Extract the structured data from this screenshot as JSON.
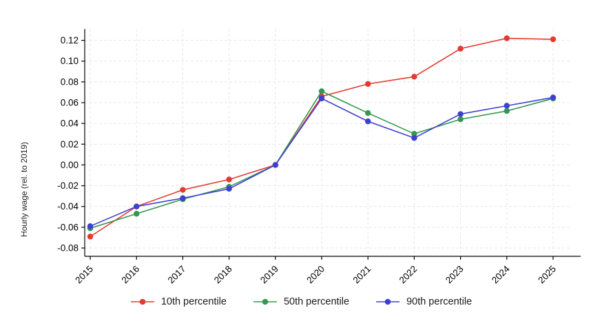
{
  "chart_data": {
    "type": "line",
    "title": "",
    "xlabel": "",
    "ylabel": "Hourly wage (rel. to 2019)",
    "x": [
      2015,
      2016,
      2017,
      2018,
      2019,
      2020,
      2021,
      2022,
      2023,
      2024,
      2025
    ],
    "series": [
      {
        "name": "10th percentile",
        "color": "#e5392f",
        "values": [
          -0.069,
          -0.04,
          -0.024,
          -0.014,
          0.0,
          0.066,
          0.078,
          0.085,
          0.112,
          0.122,
          0.121
        ]
      },
      {
        "name": "50th percentile",
        "color": "#34984e",
        "values": [
          -0.061,
          -0.047,
          -0.033,
          -0.021,
          0.0,
          0.071,
          0.05,
          0.03,
          0.044,
          0.052,
          0.064
        ]
      },
      {
        "name": "90th percentile",
        "color": "#3f3fd3",
        "values": [
          -0.059,
          -0.04,
          -0.032,
          -0.023,
          0.0,
          0.064,
          0.042,
          0.026,
          0.049,
          0.057,
          0.065
        ]
      }
    ],
    "yticks": [
      0.12,
      0.1,
      0.08,
      0.06,
      0.04,
      0.02,
      0.0,
      -0.02,
      -0.04,
      -0.06,
      -0.08
    ],
    "ylim": [
      -0.088,
      0.131
    ],
    "grid": true,
    "grid_style": "dashed",
    "legend_position": "bottom",
    "colors": {
      "background": "#ffffff",
      "grid": "#e7e7e7",
      "axis": "#000000",
      "tick_text": "#000000"
    }
  }
}
